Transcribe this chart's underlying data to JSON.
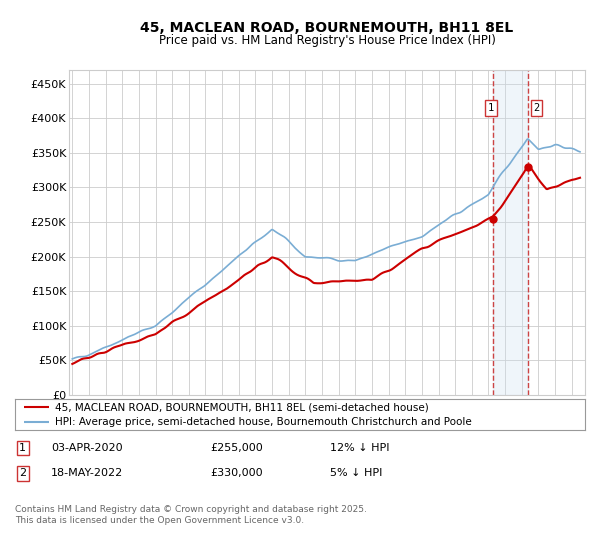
{
  "title": "45, MACLEAN ROAD, BOURNEMOUTH, BH11 8EL",
  "subtitle": "Price paid vs. HM Land Registry's House Price Index (HPI)",
  "ylabel_ticks": [
    "£0",
    "£50K",
    "£100K",
    "£150K",
    "£200K",
    "£250K",
    "£300K",
    "£350K",
    "£400K",
    "£450K"
  ],
  "ytick_values": [
    0,
    50000,
    100000,
    150000,
    200000,
    250000,
    300000,
    350000,
    400000,
    450000
  ],
  "ylim": [
    0,
    470000
  ],
  "xlim_start": 1994.8,
  "xlim_end": 2025.8,
  "transaction1": {
    "date_num": 2020.25,
    "price": 255000,
    "label": "1",
    "date_str": "03-APR-2020",
    "pct": "12% ↓ HPI"
  },
  "transaction2": {
    "date_num": 2022.37,
    "price": 330000,
    "label": "2",
    "date_str": "18-MAY-2022",
    "pct": "5% ↓ HPI"
  },
  "line_red_color": "#cc0000",
  "line_blue_color": "#7aadd4",
  "shade_color": "#cce0f0",
  "grid_color": "#cccccc",
  "background_color": "#ffffff",
  "legend1_text": "45, MACLEAN ROAD, BOURNEMOUTH, BH11 8EL (semi-detached house)",
  "legend2_text": "HPI: Average price, semi-detached house, Bournemouth Christchurch and Poole",
  "note_text": "Contains HM Land Registry data © Crown copyright and database right 2025.\nThis data is licensed under the Open Government Licence v3.0.",
  "table_rows": [
    {
      "num": "1",
      "date": "03-APR-2020",
      "price": "£255,000",
      "pct": "12% ↓ HPI"
    },
    {
      "num": "2",
      "date": "18-MAY-2022",
      "price": "£330,000",
      "pct": "5% ↓ HPI"
    }
  ]
}
